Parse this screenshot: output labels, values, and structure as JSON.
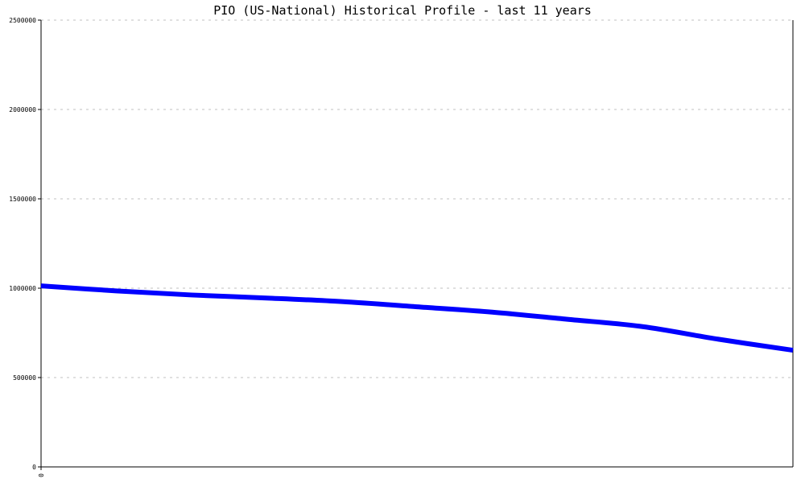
{
  "chart_data": {
    "type": "line",
    "title": "PIO (US-National) Historical Profile - last 11 years",
    "xlabel": "",
    "ylabel": "",
    "x_tick_labels": [
      "0"
    ],
    "y_tick_labels": [
      "0",
      "500000",
      "1000000",
      "1500000",
      "2000000",
      "2500000"
    ],
    "y_ticks": [
      0,
      500000,
      1000000,
      1500000,
      2000000,
      2500000
    ],
    "ylim": [
      0,
      2500000
    ],
    "grid": true,
    "series": [
      {
        "color": "#0000ff",
        "x": [
          0,
          1,
          2,
          3,
          4,
          5,
          6,
          7,
          8,
          9,
          10
        ],
        "values": [
          1013000,
          985000,
          962000,
          945000,
          925000,
          896000,
          866000,
          826000,
          785000,
          715000,
          653000
        ]
      }
    ]
  }
}
